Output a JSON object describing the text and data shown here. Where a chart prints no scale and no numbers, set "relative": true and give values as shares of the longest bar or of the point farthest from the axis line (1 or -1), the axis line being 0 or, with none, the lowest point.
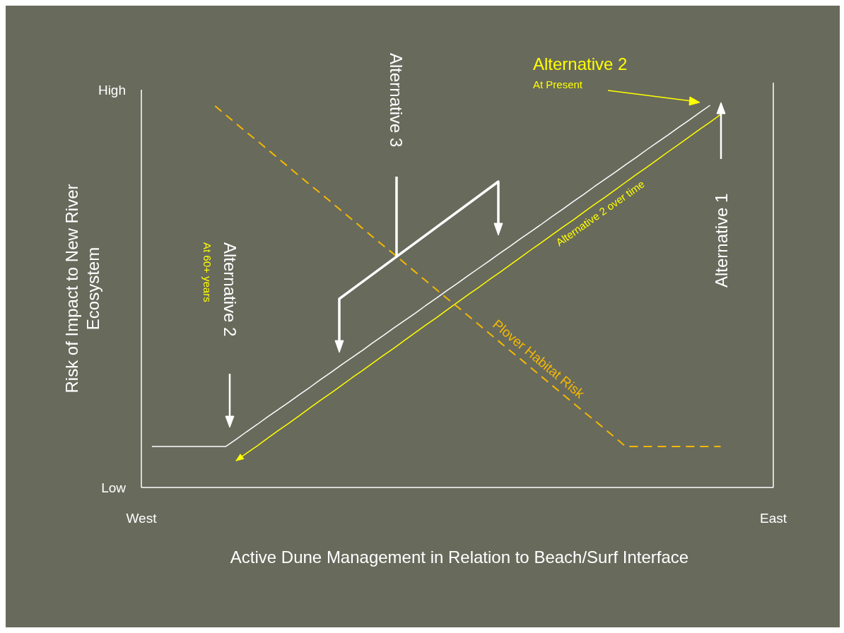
{
  "chart_data": {
    "type": "line",
    "xlabel": "Active Dune Management in Relation to Beach/Surf Interface",
    "ylabel": "Risk of Impact to New River Ecosystem",
    "relative": true,
    "categories": [
      "West",
      null,
      null,
      null,
      null,
      null,
      null,
      null,
      null,
      null,
      null,
      null,
      null,
      null,
      null,
      null,
      null,
      null,
      null,
      null,
      null,
      null,
      null,
      null,
      null,
      null,
      null,
      null,
      null,
      null,
      null,
      null,
      null,
      null,
      null,
      null,
      null,
      null,
      null,
      null,
      null,
      null,
      null,
      null,
      null,
      null,
      null,
      null,
      null,
      null,
      null,
      null,
      null,
      null,
      null,
      null,
      null,
      null,
      null,
      null,
      "East"
    ],
    "series": [
      {
        "color": "#ffffff",
        "line_style": "solid",
        "values": [
          null,
          0.107,
          0.107,
          0.107,
          0.107,
          0.107,
          0.107,
          0.107,
          0.107,
          0.126,
          0.146,
          0.165,
          0.185,
          0.204,
          0.223,
          0.243,
          0.262,
          0.282,
          0.301,
          0.321,
          0.34,
          0.359,
          0.379,
          0.398,
          0.418,
          0.437,
          0.456,
          0.476,
          0.495,
          0.515,
          0.534,
          0.554,
          0.573,
          0.592,
          0.612,
          0.631,
          0.651,
          0.67,
          0.689,
          0.709,
          0.728,
          0.748,
          0.767,
          0.787,
          0.806,
          0.825,
          0.845,
          0.864,
          0.884,
          0.903,
          0.922,
          0.942,
          0.961,
          0.981,
          1,
          null,
          null,
          null,
          null,
          null,
          null
        ]
      },
      {
        "name": "Alternative 2 over time",
        "color": "#ffff00",
        "line_style": "solid",
        "values": [
          null,
          null,
          null,
          null,
          null,
          null,
          null,
          null,
          null,
          0.07,
          0.09,
          0.109,
          0.129,
          0.149,
          0.168,
          0.188,
          0.208,
          0.228,
          0.247,
          0.267,
          0.287,
          0.306,
          0.326,
          0.346,
          0.365,
          0.385,
          0.405,
          0.425,
          0.444,
          0.464,
          0.484,
          0.504,
          0.523,
          0.543,
          0.562,
          0.582,
          0.602,
          0.622,
          0.641,
          0.661,
          0.681,
          0.7,
          0.72,
          0.74,
          0.759,
          0.779,
          0.799,
          0.819,
          0.838,
          0.858,
          0.878,
          0.897,
          0.917,
          0.937,
          0.956,
          0.976,
          null,
          null,
          null,
          null,
          null
        ]
      },
      {
        "name": "Plover Habitat Risk",
        "color": "#f5b800",
        "line_style": "dashed",
        "values": [
          null,
          null,
          null,
          null,
          null,
          null,
          null,
          0.998,
          0.975,
          0.952,
          0.929,
          0.907,
          0.884,
          0.861,
          0.838,
          0.815,
          0.792,
          0.77,
          0.747,
          0.724,
          0.701,
          0.678,
          0.655,
          0.632,
          0.61,
          0.587,
          0.564,
          0.541,
          0.518,
          0.495,
          0.473,
          0.45,
          0.427,
          0.404,
          0.381,
          0.358,
          0.336,
          0.313,
          0.29,
          0.267,
          0.244,
          0.221,
          0.198,
          0.176,
          0.153,
          0.13,
          0.107,
          0.107,
          0.107,
          0.107,
          0.107,
          0.107,
          0.107,
          0.107,
          0.107,
          0.107,
          null,
          null,
          null,
          null,
          null
        ]
      }
    ],
    "annotations": [
      "Alternative 3",
      "Alternative 2",
      "At 60+ years",
      "Alternative 1",
      "Alternative 2",
      "At Present",
      "High",
      "Low"
    ]
  }
}
